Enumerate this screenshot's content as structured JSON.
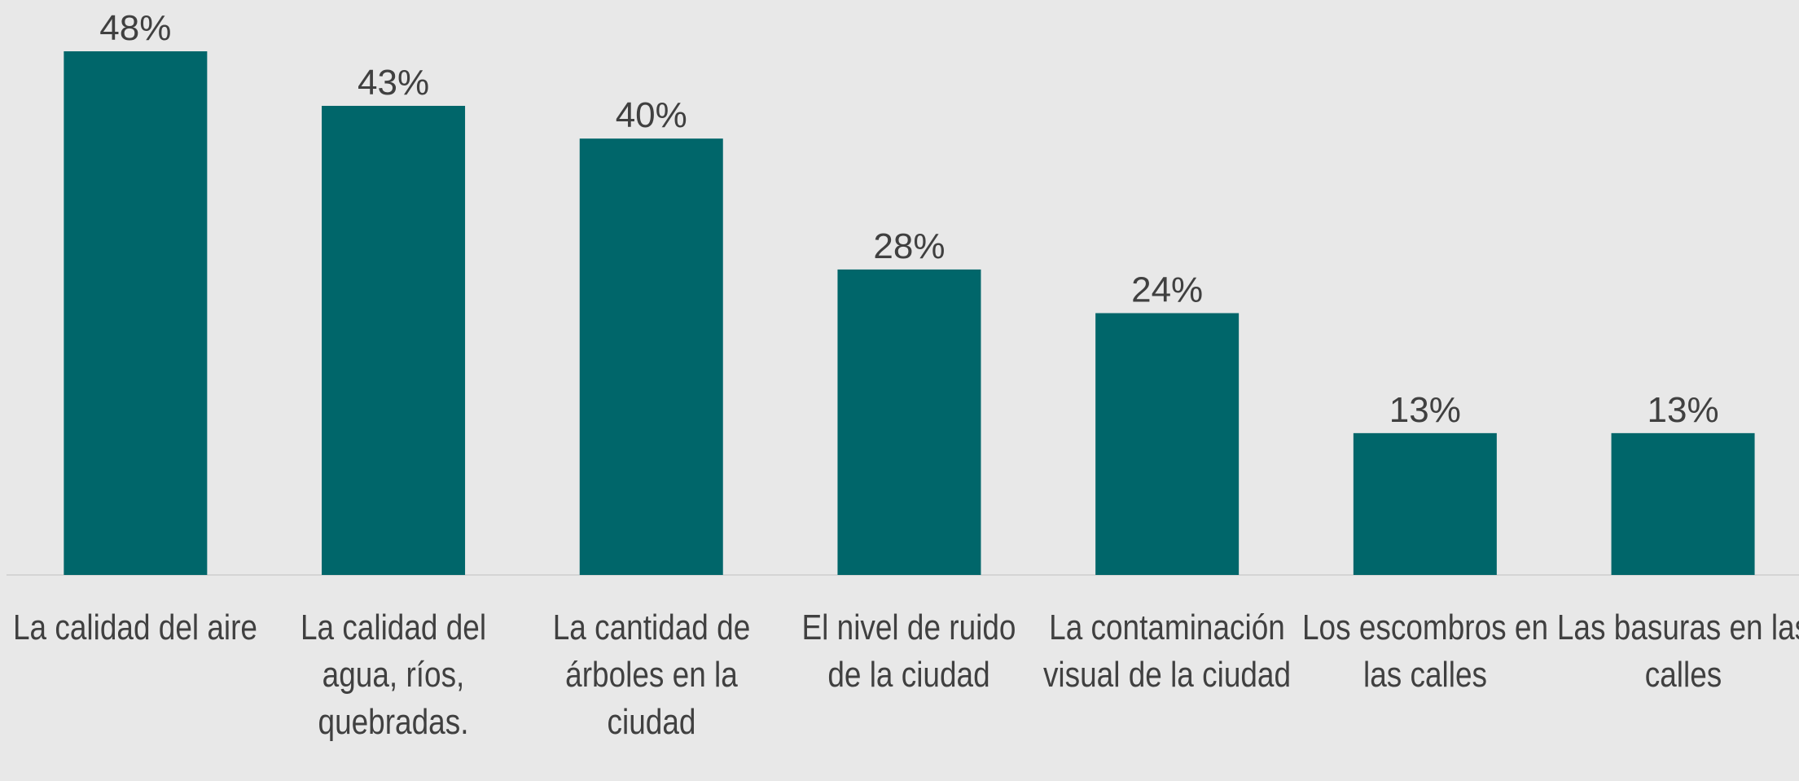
{
  "chart_data": {
    "type": "bar",
    "categories": [
      "La calidad del aire",
      "La calidad del agua, ríos, quebradas.",
      "La cantidad de árboles en la ciudad",
      "El nivel de ruido de la ciudad",
      "La contaminación visual de la ciudad",
      "Los escombros en las calles",
      "Las basuras en las calles"
    ],
    "values": [
      48,
      43,
      40,
      28,
      24,
      13,
      13
    ],
    "value_labels": [
      "48%",
      "43%",
      "40%",
      "28%",
      "24%",
      "13%",
      "13%"
    ],
    "color": "#00666a"
  }
}
